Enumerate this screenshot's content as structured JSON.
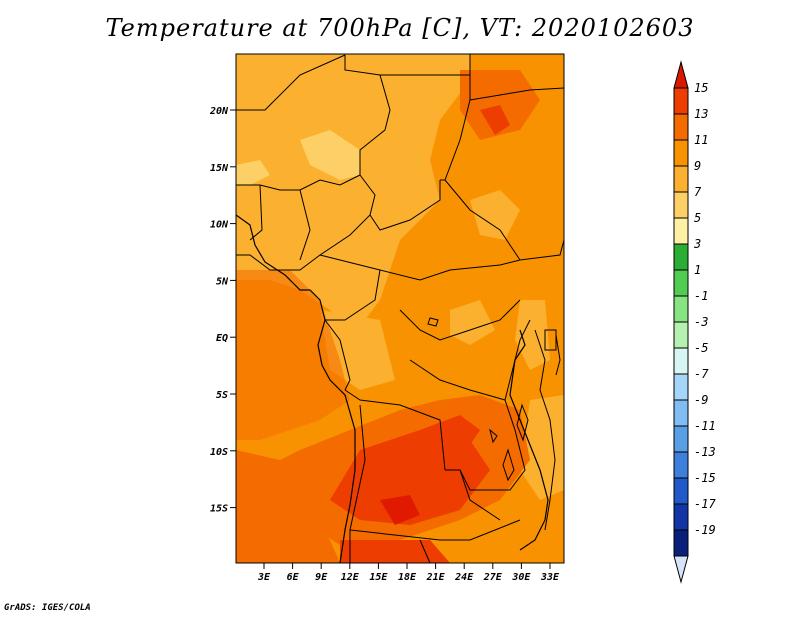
{
  "title": "Temperature at 700hPa [C], VT: 2020102603",
  "credit": "GrADS: IGES/COLA",
  "lat_ticks": [
    "20N",
    "15N",
    "10N",
    "5N",
    "EQ",
    "5S",
    "10S",
    "15S"
  ],
  "lon_ticks": [
    "3E",
    "6E",
    "9E",
    "12E",
    "15E",
    "18E",
    "21E",
    "24E",
    "27E",
    "30E",
    "33E"
  ],
  "colorbar": {
    "labels": [
      "15",
      "13",
      "11",
      "9",
      "7",
      "5",
      "3",
      "1",
      "-1",
      "-3",
      "-5",
      "-7",
      "-9",
      "-11",
      "-13",
      "-15",
      "-17",
      "-19"
    ],
    "colors": [
      "#e01a00",
      "#ee3d00",
      "#f46b00",
      "#f99200",
      "#fbb030",
      "#fdd067",
      "#fff0a6",
      "#2cad34",
      "#52cd52",
      "#86e582",
      "#b5f0b0",
      "#d7f5f2",
      "#a5d6f7",
      "#7fbdf2",
      "#5a9ee6",
      "#3d7fdb",
      "#2159c8",
      "#1236a6",
      "#0a1f7a"
    ],
    "top_arrow_color": "#d81800",
    "bottom_arrow_color": "#d6e4fb"
  }
}
